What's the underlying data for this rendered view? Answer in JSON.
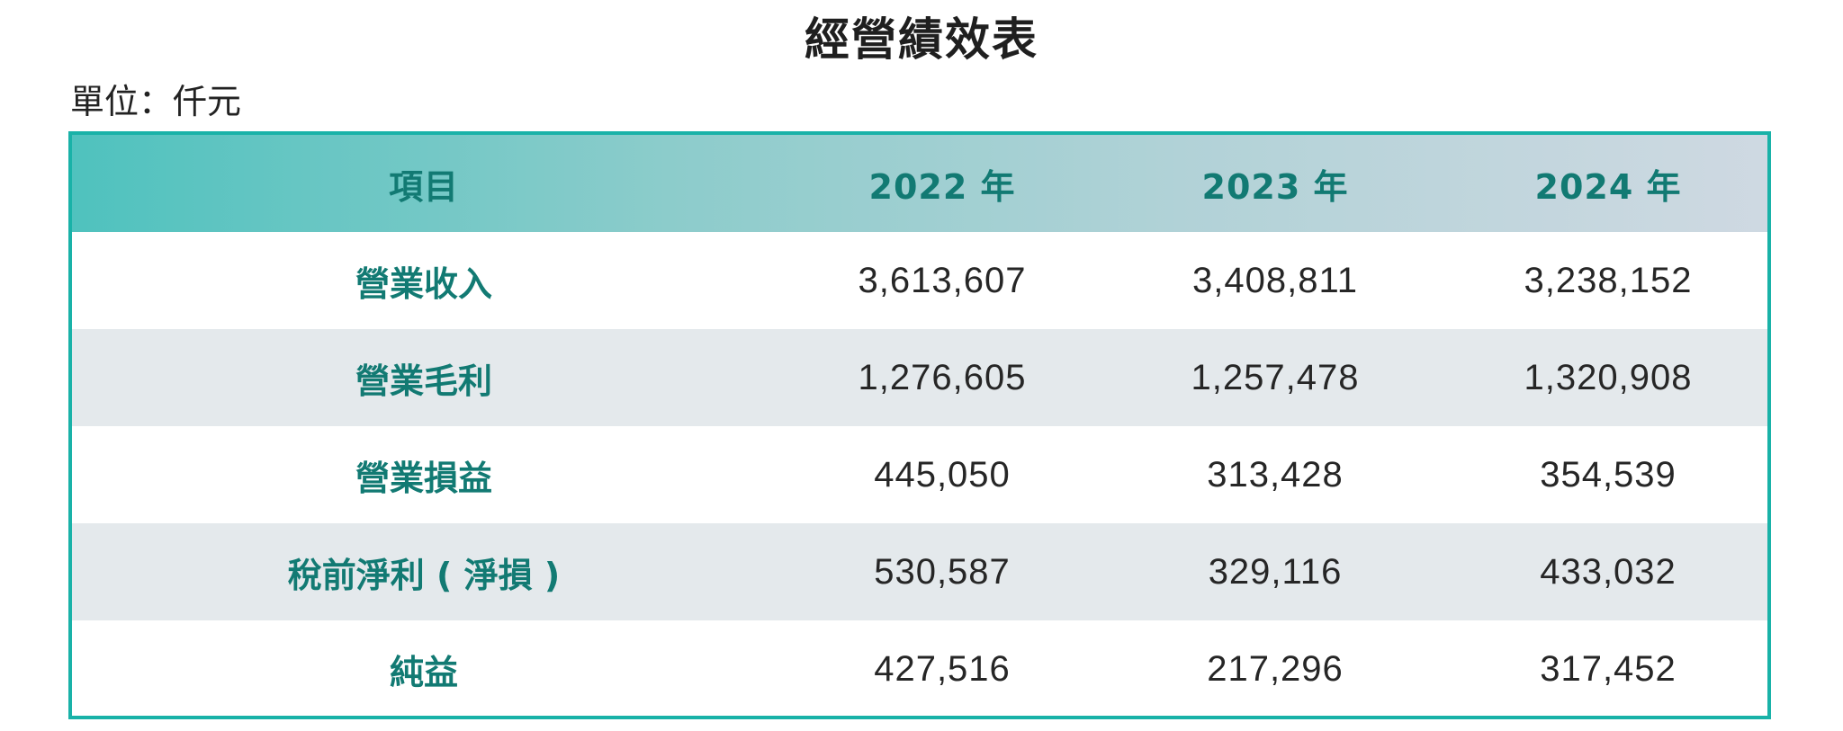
{
  "title": "經營績效表",
  "unit": "單位：仟元",
  "table": {
    "headers": [
      "項目",
      "2022 年",
      "2023 年",
      "2024 年"
    ],
    "rows": [
      {
        "item": "營業收入",
        "values": [
          "3,613,607",
          "3,408,811",
          "3,238,152"
        ]
      },
      {
        "item": "營業毛利",
        "values": [
          "1,276,605",
          "1,257,478",
          "1,320,908"
        ]
      },
      {
        "item": "營業損益",
        "values": [
          "445,050",
          "313,428",
          "354,539"
        ]
      },
      {
        "item": "稅前淨利 ( 淨損 )",
        "values": [
          "530,587",
          "329,116",
          "433,032"
        ]
      },
      {
        "item": "純益",
        "values": [
          "427,516",
          "217,296",
          "317,452"
        ]
      }
    ]
  },
  "colors": {
    "border": "#19b2a8",
    "header_text": "#127a73",
    "alt_row": "#e4e9ec"
  }
}
